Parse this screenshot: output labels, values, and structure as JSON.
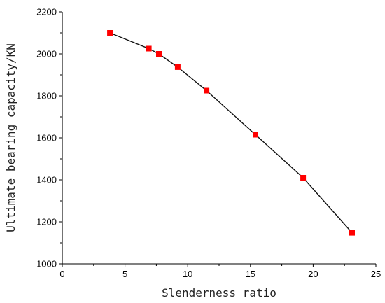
{
  "chart_data": {
    "type": "line",
    "title": "",
    "xlabel": "Slenderness ratio",
    "ylabel": "Ultimate bearing capacity/KN",
    "xlim": [
      0,
      25
    ],
    "ylim": [
      1000,
      2200
    ],
    "x_ticks": [
      0,
      5,
      10,
      15,
      20,
      25
    ],
    "y_ticks": [
      1000,
      1200,
      1400,
      1600,
      1800,
      2000,
      2200
    ],
    "grid": false,
    "legend": "none",
    "marker": "square",
    "line_color": "#111111",
    "marker_color": "#ff0000",
    "series": [
      {
        "x": [
          3.8,
          6.9,
          7.7,
          9.2,
          11.5,
          15.4,
          19.2,
          23.1
        ],
        "y": [
          2100,
          2025,
          2000,
          1937,
          1825,
          1615,
          1410,
          1148
        ]
      }
    ]
  }
}
